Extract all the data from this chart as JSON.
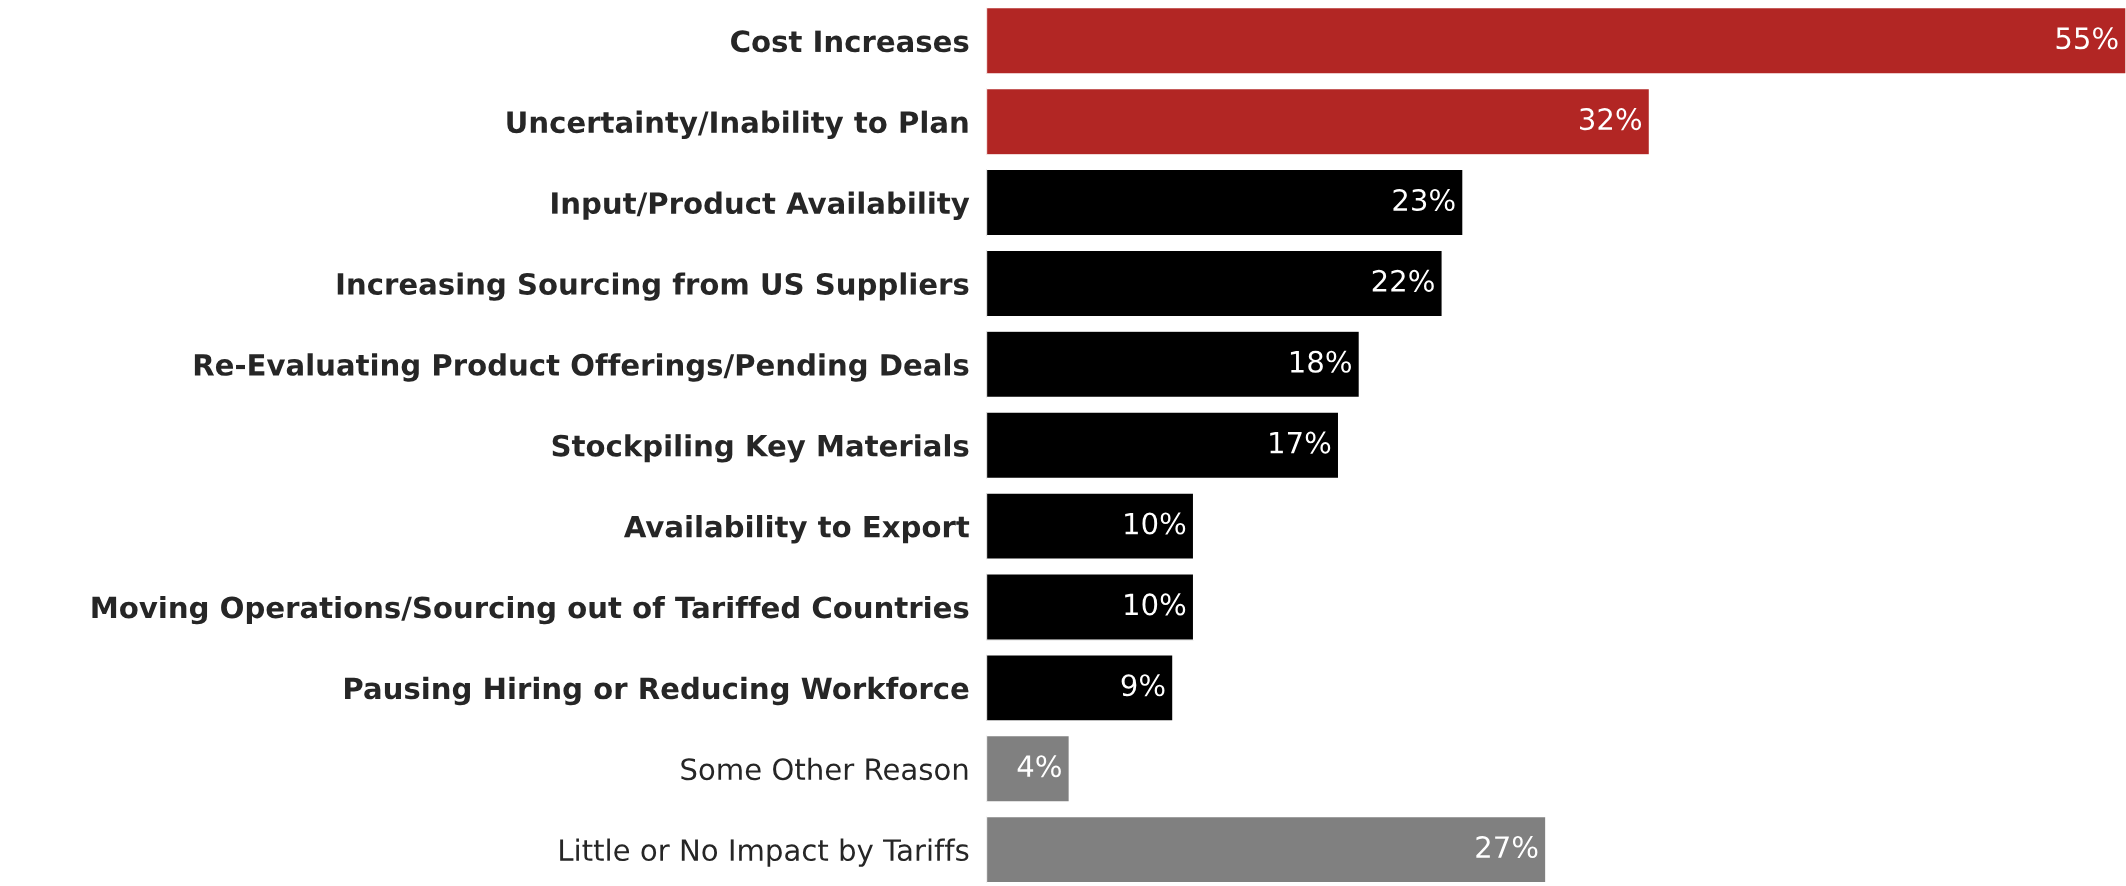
{
  "chart_data": {
    "type": "bar",
    "orientation": "horizontal",
    "categories": [
      "Cost Increases",
      "Uncertainty/Inability to Plan",
      "Input/Product Availability",
      "Increasing Sourcing from US Suppliers",
      "Re-Evaluating Product Offerings/Pending Deals",
      "Stockpiling Key Materials",
      "Availability to Export",
      "Moving Operations/Sourcing out of Tariffed Countries",
      "Pausing Hiring or Reducing Workforce",
      "Some Other Reason",
      "Little or No Impact by Tariffs"
    ],
    "values": [
      55,
      32,
      23,
      22,
      18,
      17,
      10,
      10,
      9,
      4,
      27
    ],
    "value_labels": [
      "55%",
      "32%",
      "23%",
      "22%",
      "18%",
      "17%",
      "10%",
      "10%",
      "9%",
      "4%",
      "27%"
    ],
    "colors": [
      "#b22624",
      "#b22624",
      "#000000",
      "#000000",
      "#000000",
      "#000000",
      "#000000",
      "#000000",
      "#000000",
      "#808080",
      "#808080"
    ]
  }
}
